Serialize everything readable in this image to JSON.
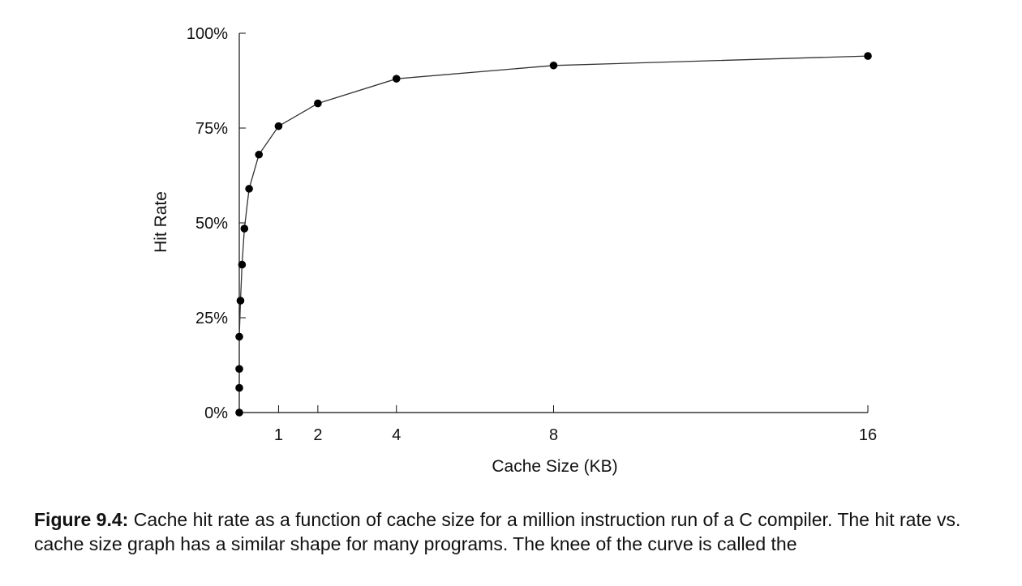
{
  "chart_data": {
    "type": "line",
    "title": "",
    "xlabel": "Cache Size (KB)",
    "ylabel": "Hit Rate",
    "xlim": [
      0,
      16
    ],
    "ylim": [
      0,
      100
    ],
    "x_ticks": [
      {
        "value": 1,
        "label": "1"
      },
      {
        "value": 2,
        "label": "2"
      },
      {
        "value": 4,
        "label": "4"
      },
      {
        "value": 8,
        "label": "8"
      },
      {
        "value": 16,
        "label": "16"
      }
    ],
    "y_ticks": [
      {
        "value": 0,
        "label": "0%"
      },
      {
        "value": 25,
        "label": "25%"
      },
      {
        "value": 50,
        "label": "50%"
      },
      {
        "value": 75,
        "label": "75%"
      },
      {
        "value": 100,
        "label": "100%"
      }
    ],
    "grid": false,
    "legend": "none",
    "series": [
      {
        "color": "#000000",
        "points": [
          {
            "x": 0,
            "y": 0
          },
          {
            "x": 0,
            "y": 6.5
          },
          {
            "x": 0,
            "y": 11.5
          },
          {
            "x": 0,
            "y": 20
          },
          {
            "x": 0.03,
            "y": 29.5
          },
          {
            "x": 0.07,
            "y": 39
          },
          {
            "x": 0.13,
            "y": 48.5
          },
          {
            "x": 0.25,
            "y": 59
          },
          {
            "x": 0.5,
            "y": 68
          },
          {
            "x": 1,
            "y": 75.5
          },
          {
            "x": 2,
            "y": 81.5
          },
          {
            "x": 4,
            "y": 88
          },
          {
            "x": 8,
            "y": 91.5
          },
          {
            "x": 16,
            "y": 94
          }
        ]
      }
    ]
  },
  "caption": {
    "label": "Figure 9.4:",
    "text": " Cache hit rate as a function of cache size for a million instruction run of a C compiler. The hit rate vs. cache size graph has a similar shape for many programs. The knee of the curve is called the"
  }
}
